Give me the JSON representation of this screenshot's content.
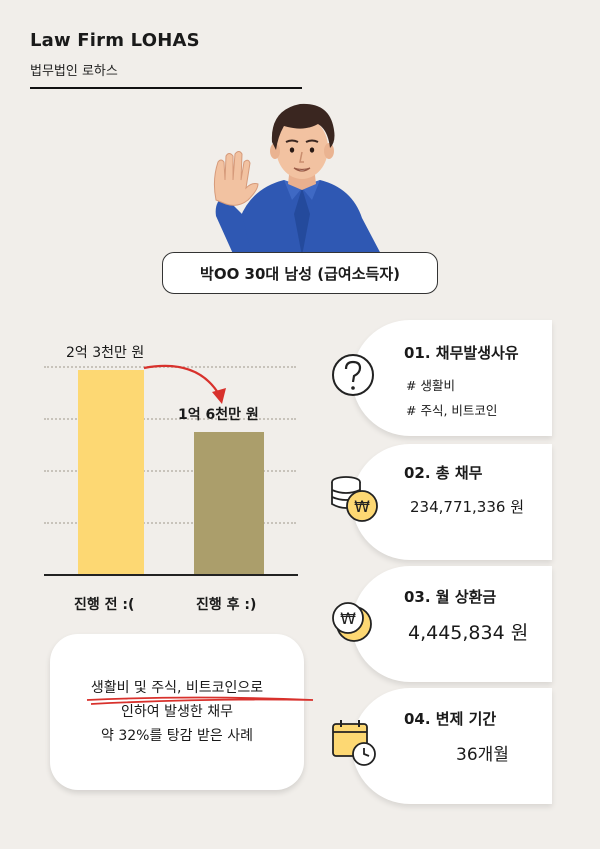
{
  "brand": {
    "title": "Law Firm LOHAS",
    "subtitle": "법무법인 로하스"
  },
  "client": {
    "label": "박OO 30대 남성 (급여소득자)"
  },
  "chart_data": {
    "type": "bar",
    "categories": [
      "진행 전 :(",
      "진행 후 :)"
    ],
    "values": [
      23000,
      16000
    ],
    "value_labels": [
      "2억 3천만 원",
      "1억 6천만 원"
    ],
    "colors": [
      "#fdd873",
      "#ab9e6b"
    ],
    "ylim": [
      0,
      25000
    ],
    "grid": true
  },
  "note": {
    "line1": "생활비 및 주식, 비트코인으로",
    "line2": "인하여 발생한 채무",
    "line3": "약 32%를 탕감 받은 사례"
  },
  "cards": [
    {
      "title": "01. 채무발생사유",
      "tags": [
        "# 생활비",
        "# 주식, 비트코인"
      ],
      "icon": "question-icon"
    },
    {
      "title": "02. 총 채무",
      "value": "234,771,336 원",
      "icon": "coins-won-icon"
    },
    {
      "title": "03. 월 상환금",
      "value": "4,445,834 원",
      "icon": "won-coin-icon"
    },
    {
      "title": "04. 변제 기간",
      "value": "36개월",
      "icon": "calendar-clock-icon"
    }
  ]
}
